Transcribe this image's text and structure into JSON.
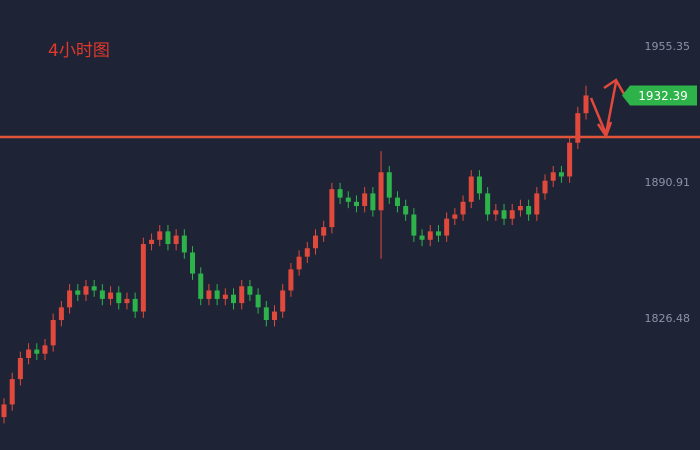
{
  "chart_data": {
    "type": "candlestick",
    "title": "4小时图",
    "open": [
      1780,
      1786,
      1798,
      1808,
      1812,
      1810,
      1814,
      1826,
      1832,
      1840,
      1838,
      1842,
      1840,
      1836,
      1839,
      1834,
      1836,
      1830,
      1862,
      1864,
      1868,
      1862,
      1866,
      1858,
      1848,
      1836,
      1840,
      1836,
      1838,
      1834,
      1842,
      1838,
      1832,
      1826,
      1830,
      1840,
      1850,
      1856,
      1860,
      1866,
      1870,
      1888,
      1884,
      1882,
      1880,
      1886,
      1878,
      1896,
      1884,
      1880,
      1876,
      1866,
      1864,
      1868,
      1866,
      1874,
      1876,
      1882,
      1894,
      1886,
      1876,
      1878,
      1874,
      1878,
      1880,
      1876,
      1886,
      1892,
      1896,
      1894,
      1910,
      1924
    ],
    "high": [
      1789,
      1801,
      1811,
      1815,
      1815,
      1817,
      1829,
      1835,
      1843,
      1843,
      1845,
      1845,
      1843,
      1842,
      1842,
      1839,
      1839,
      1865,
      1867,
      1871,
      1871,
      1869,
      1869,
      1861,
      1851,
      1843,
      1843,
      1841,
      1841,
      1845,
      1845,
      1841,
      1835,
      1833,
      1843,
      1853,
      1859,
      1863,
      1869,
      1873,
      1891,
      1891,
      1887,
      1885,
      1889,
      1889,
      1906,
      1899,
      1887,
      1883,
      1879,
      1869,
      1871,
      1871,
      1877,
      1879,
      1885,
      1897,
      1897,
      1889,
      1881,
      1881,
      1881,
      1883,
      1883,
      1889,
      1895,
      1899,
      1899,
      1913,
      1927,
      1937
    ],
    "low": [
      1777,
      1783,
      1795,
      1805,
      1807,
      1807,
      1811,
      1823,
      1829,
      1835,
      1835,
      1837,
      1833,
      1833,
      1831,
      1831,
      1827,
      1827,
      1859,
      1861,
      1859,
      1859,
      1855,
      1845,
      1833,
      1833,
      1833,
      1833,
      1831,
      1831,
      1835,
      1829,
      1823,
      1823,
      1827,
      1837,
      1847,
      1853,
      1857,
      1863,
      1867,
      1881,
      1879,
      1877,
      1877,
      1875,
      1855,
      1881,
      1877,
      1873,
      1863,
      1861,
      1861,
      1863,
      1863,
      1871,
      1873,
      1879,
      1883,
      1873,
      1873,
      1871,
      1871,
      1875,
      1873,
      1873,
      1883,
      1889,
      1891,
      1891,
      1907,
      1921
    ],
    "close": [
      1786,
      1798,
      1808,
      1812,
      1810,
      1814,
      1826,
      1832,
      1840,
      1838,
      1842,
      1840,
      1836,
      1839,
      1834,
      1836,
      1830,
      1862,
      1864,
      1868,
      1862,
      1866,
      1858,
      1848,
      1836,
      1840,
      1836,
      1838,
      1834,
      1842,
      1838,
      1832,
      1826,
      1830,
      1840,
      1850,
      1856,
      1860,
      1866,
      1870,
      1888,
      1884,
      1882,
      1880,
      1886,
      1878,
      1896,
      1884,
      1880,
      1876,
      1866,
      1864,
      1868,
      1866,
      1874,
      1876,
      1882,
      1894,
      1886,
      1876,
      1878,
      1874,
      1878,
      1880,
      1876,
      1886,
      1892,
      1896,
      1894,
      1910,
      1924,
      1932.39
    ],
    "up_color": "#e0493b",
    "down_color": "#2db34a",
    "ylim": [
      1764.41,
      1977.62
    ],
    "yticks": [
      1826.48,
      1890.91,
      1955.35
    ],
    "hline": 1912.71,
    "hline_color": "#e0553a"
  }
}
